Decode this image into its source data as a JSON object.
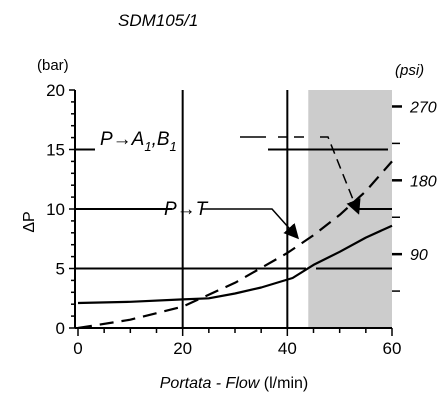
{
  "chart_data": {
    "type": "line",
    "title": "SDM105/1",
    "xlabel_it": "Portata - Flow",
    "xlabel_unit": "(l/min)",
    "ylabel": "ΔP",
    "y_unit": "(bar)",
    "y2_unit": "(psi)",
    "xlim": [
      0,
      60
    ],
    "ylim": [
      0,
      20
    ],
    "x_ticks": [
      "0",
      "20",
      "40",
      "60"
    ],
    "y_ticks": [
      "0",
      "5",
      "10",
      "15",
      "20"
    ],
    "y2_ticks": [
      "270",
      "180",
      "90"
    ],
    "shaded_x_from": 44,
    "series": [
      {
        "name": "P→A1,B1",
        "name_main": "P→A",
        "name_sub1": "1",
        "name_mid": ",B",
        "name_sub2": "1",
        "dash": true,
        "x": [
          0,
          10,
          20,
          30,
          40,
          45,
          50,
          55,
          60
        ],
        "y": [
          0,
          0.7,
          1.8,
          3.8,
          6.3,
          7.8,
          9.5,
          11.5,
          14
        ]
      },
      {
        "name": "P→T",
        "dash": false,
        "x": [
          0,
          10,
          20,
          25,
          30,
          35,
          41,
          45,
          50,
          55,
          60
        ],
        "y": [
          2.1,
          2.2,
          2.4,
          2.5,
          2.9,
          3.4,
          4.2,
          5.3,
          6.4,
          7.6,
          8.6
        ]
      }
    ]
  }
}
